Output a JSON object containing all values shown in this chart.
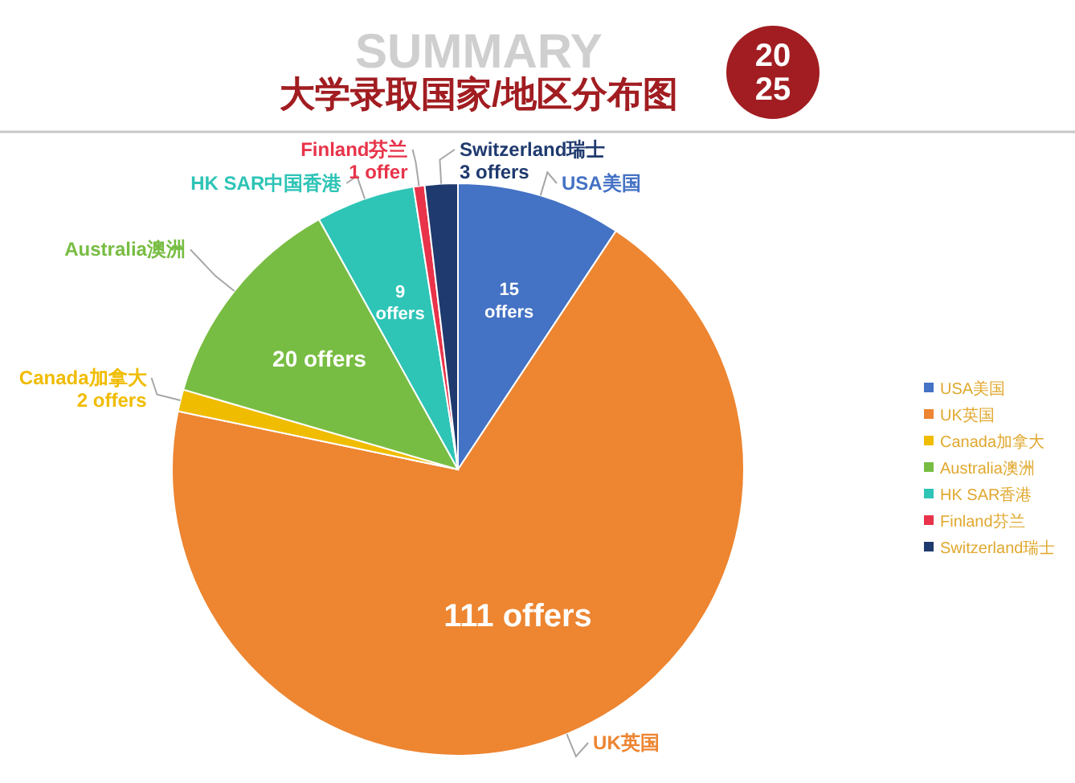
{
  "chart_data": {
    "type": "pie",
    "title": "大学录取国家/地区分布图",
    "categories": [
      "USA美国",
      "UK英国",
      "Canada加拿大",
      "Australia澳洲",
      "HK SAR香港",
      "Finland芬兰",
      "Switzerland瑞士"
    ],
    "values": [
      15,
      111,
      2,
      20,
      9,
      1,
      3
    ],
    "colors": [
      "#4472c4",
      "#ed8531",
      "#f0bc00",
      "#78bd43",
      "#2ec4b6",
      "#e8334a",
      "#1f3a6e"
    ],
    "value_labels": [
      "15\noffers",
      "111 offers",
      "2 offers",
      "20 offers",
      "9\noffers",
      "1 offer",
      "3 offers"
    ],
    "annotations": [
      {
        "text": "USA美国",
        "x": "USA美国"
      },
      {
        "text": "UK英国",
        "x": "UK英国"
      },
      {
        "text": "Canada加拿大",
        "x": "Canada加拿大"
      },
      {
        "text": "Australia澳洲",
        "x": "Australia澳洲"
      },
      {
        "text": "HK SAR中国香港",
        "x": "HK SAR香港"
      },
      {
        "text": "Finland芬兰",
        "x": "Finland芬兰"
      },
      {
        "text": "Switzerland瑞士",
        "x": "Switzerland瑞士"
      },
      "SUMMARY",
      "20\n25"
    ],
    "legend": "right"
  }
}
